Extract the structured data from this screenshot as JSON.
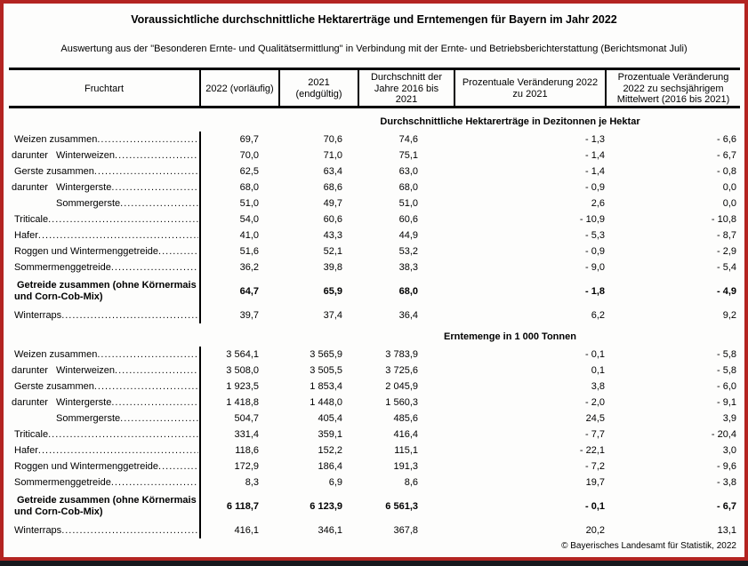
{
  "title": "Voraussichtliche durchschnittliche Hektarerträge und Erntemengen für Bayern im Jahr 2022",
  "subtitle": "Auswertung aus der \"Besonderen Ernte- und Qualitätsermittlung\" in Verbindung mit der Ernte- und Betriebsberichterstattung (Berichtsmonat Juli)",
  "frame_color": "#b32421",
  "table": {
    "columns": [
      "Fruchtart",
      "2022 (vorläufig)",
      "2021 (endgültig)",
      "Durchschnitt der Jahre 2016 bis 2021",
      "Prozentuale Veränderung 2022 zu 2021",
      "Prozentuale Veränderung 2022 zu sechsjährigem Mittelwert (2016 bis 2021)"
    ],
    "sections": [
      {
        "heading": "Durchschnittliche Hektarerträge in Dezitonnen je Hektar",
        "rows": [
          {
            "label": "Weizen zusammen",
            "prefix": "",
            "indent": false,
            "bold": false,
            "dots": true,
            "values": [
              "69,7",
              "70,6",
              "74,6",
              "- 1,3",
              "- 6,6"
            ]
          },
          {
            "label": "Winterweizen",
            "prefix": "darunter",
            "indent": true,
            "bold": false,
            "dots": true,
            "values": [
              "70,0",
              "71,0",
              "75,1",
              "- 1,4",
              "- 6,7"
            ]
          },
          {
            "label": "Gerste zusammen",
            "prefix": "",
            "indent": false,
            "bold": false,
            "dots": true,
            "values": [
              "62,5",
              "63,4",
              "63,0",
              "- 1,4",
              "- 0,8"
            ]
          },
          {
            "label": "Wintergerste",
            "prefix": "darunter",
            "indent": true,
            "bold": false,
            "dots": true,
            "values": [
              "68,0",
              "68,6",
              "68,0",
              "- 0,9",
              "0,0"
            ]
          },
          {
            "label": "Sommergerste",
            "prefix": "",
            "indent": true,
            "bold": false,
            "dots": true,
            "values": [
              "51,0",
              "49,7",
              "51,0",
              "2,6",
              "0,0"
            ]
          },
          {
            "label": "Triticale",
            "prefix": "",
            "indent": false,
            "bold": false,
            "dots": true,
            "values": [
              "54,0",
              "60,6",
              "60,6",
              "- 10,9",
              "- 10,8"
            ]
          },
          {
            "label": "Hafer",
            "prefix": "",
            "indent": false,
            "bold": false,
            "dots": true,
            "values": [
              "41,0",
              "43,3",
              "44,9",
              "- 5,3",
              "- 8,7"
            ]
          },
          {
            "label": "Roggen und Wintermenggetreide",
            "prefix": "",
            "indent": false,
            "bold": false,
            "dots": true,
            "values": [
              "51,6",
              "52,1",
              "53,2",
              "- 0,9",
              "- 2,9"
            ]
          },
          {
            "label": "Sommermenggetreide",
            "prefix": "",
            "indent": false,
            "bold": false,
            "dots": true,
            "values": [
              "36,2",
              "39,8",
              "38,3",
              "- 9,0",
              "- 5,4"
            ]
          },
          {
            "label": "Getreide zusammen (ohne Körnermais und Corn-Cob-Mix)",
            "prefix": "",
            "indent": false,
            "bold": true,
            "dots": false,
            "values": [
              "64,7",
              "65,9",
              "68,0",
              "- 1,8",
              "- 4,9"
            ]
          },
          {
            "label": "Winterraps",
            "prefix": "",
            "indent": false,
            "bold": false,
            "dots": true,
            "values": [
              "39,7",
              "37,4",
              "36,4",
              "6,2",
              "9,2"
            ]
          }
        ]
      },
      {
        "heading": "Erntemenge in 1 000 Tonnen",
        "rows": [
          {
            "label": "Weizen zusammen",
            "prefix": "",
            "indent": false,
            "bold": false,
            "dots": true,
            "values": [
              "3 564,1",
              "3 565,9",
              "3 783,9",
              "- 0,1",
              "- 5,8"
            ]
          },
          {
            "label": "Winterweizen",
            "prefix": "darunter",
            "indent": true,
            "bold": false,
            "dots": true,
            "values": [
              "3 508,0",
              "3 505,5",
              "3 725,6",
              "0,1",
              "- 5,8"
            ]
          },
          {
            "label": "Gerste zusammen",
            "prefix": "",
            "indent": false,
            "bold": false,
            "dots": true,
            "values": [
              "1 923,5",
              "1 853,4",
              "2 045,9",
              "3,8",
              "- 6,0"
            ]
          },
          {
            "label": "Wintergerste",
            "prefix": "darunter",
            "indent": true,
            "bold": false,
            "dots": true,
            "values": [
              "1 418,8",
              "1 448,0",
              "1 560,3",
              "- 2,0",
              "- 9,1"
            ]
          },
          {
            "label": "Sommergerste",
            "prefix": "",
            "indent": true,
            "bold": false,
            "dots": true,
            "values": [
              "504,7",
              "405,4",
              "485,6",
              "24,5",
              "3,9"
            ]
          },
          {
            "label": "Triticale",
            "prefix": "",
            "indent": false,
            "bold": false,
            "dots": true,
            "values": [
              "331,4",
              "359,1",
              "416,4",
              "- 7,7",
              "- 20,4"
            ]
          },
          {
            "label": "Hafer",
            "prefix": "",
            "indent": false,
            "bold": false,
            "dots": true,
            "values": [
              "118,6",
              "152,2",
              "115,1",
              "- 22,1",
              "3,0"
            ]
          },
          {
            "label": "Roggen und Wintermenggetreide",
            "prefix": "",
            "indent": false,
            "bold": false,
            "dots": true,
            "values": [
              "172,9",
              "186,4",
              "191,3",
              "- 7,2",
              "- 9,6"
            ]
          },
          {
            "label": "Sommermenggetreide",
            "prefix": "",
            "indent": false,
            "bold": false,
            "dots": true,
            "values": [
              "8,3",
              "6,9",
              "8,6",
              "19,7",
              "- 3,8"
            ]
          },
          {
            "label": "Getreide zusammen (ohne Körnermais und Corn-Cob-Mix)",
            "prefix": "",
            "indent": false,
            "bold": true,
            "dots": false,
            "values": [
              "6 118,7",
              "6 123,9",
              "6 561,3",
              "- 0,1",
              "- 6,7"
            ]
          },
          {
            "label": "Winterraps",
            "prefix": "",
            "indent": false,
            "bold": false,
            "dots": true,
            "values": [
              "416,1",
              "346,1",
              "367,8",
              "20,2",
              "13,1"
            ]
          }
        ]
      }
    ]
  },
  "footer": {
    "copyright": "© Bayerisches Landesamt für Statistik, 2022"
  }
}
